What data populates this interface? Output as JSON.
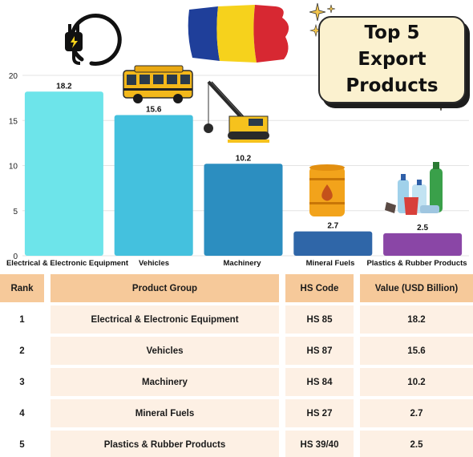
{
  "chart_data": {
    "type": "bar",
    "categories": [
      "Electrical & Electronic Equipment",
      "Vehicles",
      "Machinery",
      "Mineral Fuels",
      "Plastics & Rubber Products"
    ],
    "values": [
      18.2,
      15.6,
      10.2,
      2.7,
      2.5
    ],
    "value_labels": [
      "18.2",
      "15.6",
      "10.2",
      "2.7",
      "2.5"
    ],
    "colors": [
      "#6de4ea",
      "#44c1de",
      "#2c8ec0",
      "#2f66a8",
      "#8a46a6"
    ],
    "ylim": [
      0,
      20
    ],
    "yticks": [
      0,
      5,
      10,
      15,
      20
    ],
    "grid": true,
    "title": "Top 5 Export Products",
    "icons": [
      "plug-icon",
      "school-bus-icon",
      "crane-icon",
      "oil-barrel-icon",
      "plastic-bottles-icon"
    ]
  },
  "title_box": {
    "text": "Top 5 Export Products"
  },
  "table": {
    "headers": [
      "Rank",
      "Product Group",
      "HS Code",
      "Value (USD Billion)"
    ],
    "rows": [
      [
        "1",
        "Electrical & Electronic Equipment",
        "HS 85",
        "18.2"
      ],
      [
        "2",
        "Vehicles",
        "HS 87",
        "15.6"
      ],
      [
        "3",
        "Machinery",
        "HS 84",
        "10.2"
      ],
      [
        "4",
        "Mineral Fuels",
        "HS 27",
        "2.7"
      ],
      [
        "5",
        "Plastics & Rubber Products",
        "HS 39/40",
        "2.5"
      ]
    ]
  },
  "flag_colors": [
    "#1f3f9a",
    "#f6d21c",
    "#d72832"
  ]
}
